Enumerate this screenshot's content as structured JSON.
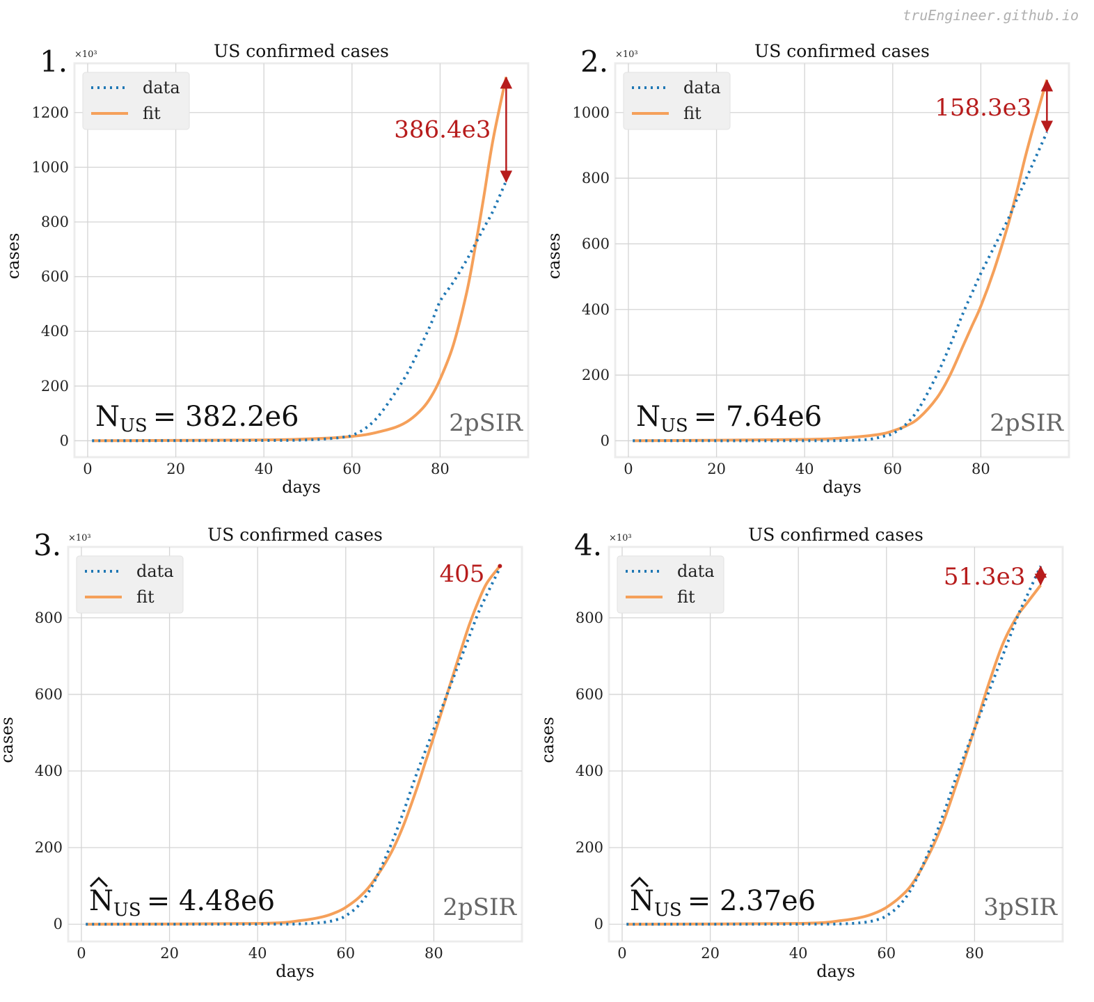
{
  "watermark": "truEngineer.github.io",
  "colors": {
    "data": "#1f77b4",
    "fit": "#f5a05a",
    "annotation": "#b71c1c",
    "grid": "#d4d4d4",
    "axes_bg": "#ffffff",
    "axes_border": "#ececec",
    "model_label": "#666666"
  },
  "chart_data": [
    {
      "type": "line",
      "panel_number": "1.",
      "title": "US confirmed cases",
      "xlabel": "days",
      "ylabel": "cases",
      "scale_label": "×10³",
      "xlim": [
        -3,
        100
      ],
      "ylim": [
        -60,
        1380
      ],
      "xticks": [
        0,
        20,
        40,
        60,
        80
      ],
      "xtick_labels": [
        "0",
        "20",
        "40",
        "60",
        "80"
      ],
      "yticks": [
        0,
        200,
        400,
        600,
        800,
        1000,
        1200
      ],
      "ytick_labels": [
        "0",
        "200",
        "400",
        "600",
        "800",
        "1000",
        "1200"
      ],
      "legend": [
        "data",
        "fit"
      ],
      "series": [
        {
          "name": "data",
          "style": "dotted",
          "x": [
            1,
            40,
            50,
            55,
            58,
            60,
            63,
            66,
            70,
            73,
            76,
            78,
            80,
            83,
            86,
            88,
            90,
            92,
            95
          ],
          "y": [
            0,
            1,
            3,
            8,
            13,
            20,
            45,
            90,
            180,
            260,
            360,
            430,
            510,
            580,
            660,
            720,
            780,
            840,
            950
          ]
        },
        {
          "name": "fit",
          "style": "solid",
          "x": [
            1,
            40,
            50,
            55,
            58,
            60,
            63,
            66,
            70,
            73,
            76,
            78,
            80,
            83,
            86,
            88,
            90,
            92,
            95
          ],
          "y": [
            0,
            3,
            7,
            10,
            13,
            16,
            22,
            32,
            50,
            75,
            118,
            162,
            225,
            350,
            540,
            710,
            900,
            1100,
            1330
          ]
        }
      ],
      "diff_annotation": {
        "text": "386.4e3",
        "x": 95,
        "y_top": 1330,
        "y_bottom": 945,
        "type": "arrow"
      },
      "n_label": {
        "prefix": "N",
        "subscript": "US",
        "value": "= 382.2e6",
        "hat": false
      },
      "model_label": "2pSIR"
    },
    {
      "type": "line",
      "panel_number": "2.",
      "title": "US confirmed cases",
      "xlabel": "days",
      "ylabel": "cases",
      "scale_label": "×10³",
      "xlim": [
        -3,
        100
      ],
      "ylim": [
        -50,
        1150
      ],
      "xticks": [
        0,
        20,
        40,
        60,
        80
      ],
      "xtick_labels": [
        "0",
        "20",
        "40",
        "60",
        "80"
      ],
      "yticks": [
        0,
        200,
        400,
        600,
        800,
        1000
      ],
      "ytick_labels": [
        "0",
        "200",
        "400",
        "600",
        "800",
        "1000"
      ],
      "legend": [
        "data",
        "fit"
      ],
      "series": [
        {
          "name": "data",
          "style": "dotted",
          "x": [
            1,
            40,
            50,
            55,
            58,
            60,
            63,
            66,
            70,
            73,
            76,
            78,
            80,
            83,
            86,
            88,
            90,
            92,
            95
          ],
          "y": [
            0,
            0,
            1,
            5,
            14,
            22,
            50,
            100,
            200,
            290,
            390,
            450,
            510,
            590,
            670,
            730,
            790,
            850,
            940
          ]
        },
        {
          "name": "fit",
          "style": "solid",
          "x": [
            1,
            40,
            50,
            55,
            58,
            60,
            63,
            66,
            70,
            73,
            76,
            78,
            80,
            83,
            86,
            88,
            90,
            92,
            95
          ],
          "y": [
            0,
            4,
            10,
            16,
            22,
            30,
            45,
            70,
            130,
            200,
            290,
            350,
            410,
            520,
            650,
            750,
            860,
            960,
            1100
          ]
        }
      ],
      "diff_annotation": {
        "text": "158.3e3",
        "x": 95,
        "y_top": 1100,
        "y_bottom": 940,
        "type": "arrow"
      },
      "n_label": {
        "prefix": "N",
        "subscript": "US",
        "value": "= 7.64e6",
        "hat": false
      },
      "model_label": "2pSIR"
    },
    {
      "type": "line",
      "panel_number": "3.",
      "title": "US confirmed cases",
      "xlabel": "days",
      "ylabel": "cases",
      "scale_label": "×10³",
      "xlim": [
        -3,
        100
      ],
      "ylim": [
        -45,
        985
      ],
      "xticks": [
        0,
        20,
        40,
        60,
        80
      ],
      "xtick_labels": [
        "0",
        "20",
        "40",
        "60",
        "80"
      ],
      "yticks": [
        0,
        200,
        400,
        600,
        800
      ],
      "ytick_labels": [
        "0",
        "200",
        "400",
        "600",
        "800"
      ],
      "legend": [
        "data",
        "fit"
      ],
      "series": [
        {
          "name": "data",
          "style": "dotted",
          "x": [
            1,
            40,
            50,
            55,
            58,
            60,
            63,
            66,
            70,
            73,
            76,
            78,
            80,
            83,
            86,
            88,
            90,
            92,
            95
          ],
          "y": [
            0,
            0,
            1,
            5,
            12,
            22,
            50,
            100,
            200,
            290,
            390,
            450,
            510,
            600,
            690,
            750,
            810,
            860,
            930
          ]
        },
        {
          "name": "fit",
          "style": "solid",
          "x": [
            1,
            40,
            50,
            55,
            58,
            60,
            63,
            66,
            70,
            73,
            76,
            78,
            80,
            83,
            86,
            88,
            90,
            92,
            95
          ],
          "y": [
            0,
            2,
            10,
            20,
            32,
            44,
            70,
            108,
            180,
            255,
            350,
            420,
            490,
            600,
            710,
            780,
            840,
            890,
            935
          ]
        }
      ],
      "diff_annotation": {
        "text": "405",
        "x": 95,
        "y_top": 935,
        "y_bottom": 930,
        "type": "marker"
      },
      "n_label": {
        "prefix": "N",
        "subscript": "US",
        "value": "= 4.48e6",
        "hat": true
      },
      "model_label": "2pSIR"
    },
    {
      "type": "line",
      "panel_number": "4.",
      "title": "US confirmed cases",
      "xlabel": "days",
      "ylabel": "cases",
      "scale_label": "×10³",
      "xlim": [
        -3,
        100
      ],
      "ylim": [
        -45,
        985
      ],
      "xticks": [
        0,
        20,
        40,
        60,
        80
      ],
      "xtick_labels": [
        "0",
        "20",
        "40",
        "60",
        "80"
      ],
      "yticks": [
        0,
        200,
        400,
        600,
        800
      ],
      "ytick_labels": [
        "0",
        "200",
        "400",
        "600",
        "800"
      ],
      "legend": [
        "data",
        "fit"
      ],
      "series": [
        {
          "name": "data",
          "style": "dotted",
          "x": [
            1,
            40,
            50,
            55,
            58,
            60,
            63,
            66,
            70,
            73,
            76,
            78,
            80,
            83,
            86,
            88,
            90,
            92,
            95
          ],
          "y": [
            0,
            0,
            1,
            5,
            12,
            22,
            50,
            100,
            200,
            290,
            390,
            450,
            510,
            600,
            690,
            750,
            810,
            860,
            935
          ]
        },
        {
          "name": "fit",
          "style": "solid",
          "x": [
            1,
            40,
            50,
            55,
            58,
            60,
            63,
            66,
            70,
            73,
            76,
            78,
            80,
            83,
            86,
            88,
            90,
            92,
            95
          ],
          "y": [
            0,
            2,
            10,
            20,
            32,
            44,
            70,
            108,
            190,
            270,
            370,
            440,
            510,
            620,
            720,
            770,
            810,
            840,
            885
          ]
        }
      ],
      "diff_annotation": {
        "text": "51.3e3",
        "x": 95,
        "y_top": 935,
        "y_bottom": 885,
        "type": "arrow"
      },
      "n_label": {
        "prefix": "N",
        "subscript": "US",
        "value": "= 2.37e6",
        "hat": true
      },
      "model_label": "3pSIR"
    }
  ]
}
